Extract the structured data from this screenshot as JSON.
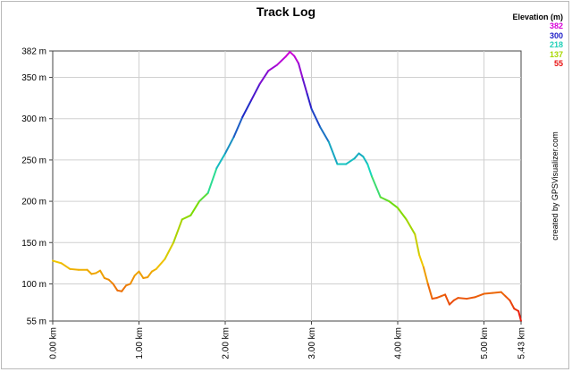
{
  "title": "Track Log",
  "credit": "created by GPSVisualizer.com",
  "legend": {
    "title": "Elevation (m)",
    "entries": [
      {
        "label": "382",
        "color": "#d800d8"
      },
      {
        "label": "300",
        "color": "#2020c8"
      },
      {
        "label": "218",
        "color": "#20d0b8"
      },
      {
        "label": "137",
        "color": "#a8d800"
      },
      {
        "label": "55",
        "color": "#e81010"
      }
    ]
  },
  "chart_data": {
    "type": "line",
    "title": "Track Log",
    "xlabel": "",
    "ylabel": "",
    "xlim": [
      0,
      5.43
    ],
    "ylim": [
      55,
      382
    ],
    "grid": true,
    "color_scale": "elevation: red (55) → yellow → green → cyan → blue → magenta (382)",
    "x_ticks": [
      {
        "value": 0,
        "label": "0.00 km"
      },
      {
        "value": 1,
        "label": "1.00 km"
      },
      {
        "value": 2,
        "label": "2.00 km"
      },
      {
        "value": 3,
        "label": "3.00 km"
      },
      {
        "value": 4,
        "label": "4.00 km"
      },
      {
        "value": 5,
        "label": "5.00 km"
      },
      {
        "value": 5.43,
        "label": "5.43 km"
      }
    ],
    "y_ticks": [
      {
        "value": 55,
        "label": "55 m"
      },
      {
        "value": 100,
        "label": "100 m"
      },
      {
        "value": 150,
        "label": "150 m"
      },
      {
        "value": 200,
        "label": "200 m"
      },
      {
        "value": 250,
        "label": "250 m"
      },
      {
        "value": 300,
        "label": "300 m"
      },
      {
        "value": 350,
        "label": "350 m"
      },
      {
        "value": 382,
        "label": "382 m"
      }
    ],
    "series": [
      {
        "x": [
          0,
          0.1,
          0.2,
          0.3,
          0.4,
          0.45,
          0.5,
          0.55,
          0.6,
          0.65,
          0.7,
          0.75,
          0.8,
          0.85,
          0.9,
          0.95,
          1.0,
          1.05,
          1.1,
          1.15,
          1.2,
          1.3,
          1.4,
          1.5,
          1.6,
          1.7,
          1.8,
          1.9,
          2.0,
          2.1,
          2.2,
          2.3,
          2.4,
          2.5,
          2.6,
          2.7,
          2.75,
          2.8,
          2.85,
          2.9,
          2.95,
          3.0,
          3.1,
          3.2,
          3.3,
          3.4,
          3.5,
          3.55,
          3.6,
          3.65,
          3.7,
          3.8,
          3.9,
          4.0,
          4.1,
          4.2,
          4.25,
          4.3,
          4.35,
          4.4,
          4.45,
          4.5,
          4.55,
          4.6,
          4.65,
          4.7,
          4.8,
          4.9,
          5.0,
          5.1,
          5.2,
          5.25,
          5.3,
          5.35,
          5.4,
          5.43
        ],
        "y": [
          128,
          125,
          118,
          117,
          117,
          112,
          113,
          116,
          107,
          105,
          100,
          92,
          91,
          98,
          100,
          110,
          115,
          107,
          108,
          115,
          118,
          130,
          150,
          178,
          183,
          200,
          210,
          240,
          258,
          278,
          302,
          322,
          342,
          358,
          365,
          375,
          381,
          376,
          367,
          348,
          330,
          312,
          290,
          272,
          245,
          245,
          252,
          258,
          254,
          245,
          230,
          205,
          200,
          192,
          178,
          160,
          135,
          120,
          100,
          82,
          83,
          85,
          87,
          75,
          80,
          83,
          82,
          84,
          88,
          89,
          90,
          85,
          80,
          70,
          67,
          55
        ]
      }
    ]
  }
}
